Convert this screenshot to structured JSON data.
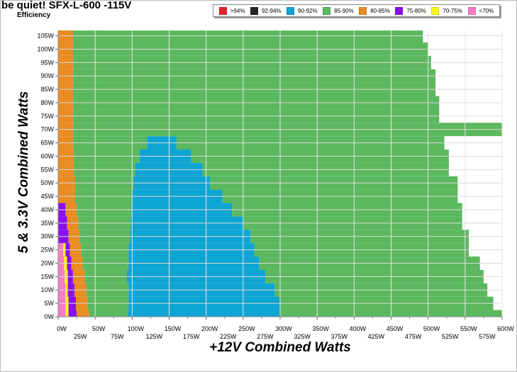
{
  "chart": {
    "title": "be quiet! SFX-L-600 -115V",
    "subtitle": "Efficiency",
    "xlabel": "+12V Combined Watts",
    "ylabel": "5 & 3.3V Combined Watts"
  },
  "legend": [
    {
      "label": ">94%",
      "color": "#e8202e"
    },
    {
      "label": "92-94%",
      "color": "#262626"
    },
    {
      "label": "90-92%",
      "color": "#0ea5d3"
    },
    {
      "label": "85-90%",
      "color": "#5cb85f"
    },
    {
      "label": "80-85%",
      "color": "#e88c23"
    },
    {
      "label": "75-80%",
      "color": "#8a0ef2"
    },
    {
      "label": "70-75%",
      "color": "#fbf514"
    },
    {
      "label": "<70%",
      "color": "#f57bc6"
    }
  ],
  "chart_data": {
    "type": "heatmap",
    "title": "be quiet! SFX-L-600 -115V",
    "subtitle": "Efficiency",
    "xlabel": "+12V Combined Watts",
    "ylabel": "5 & 3.3V Combined Watts",
    "xlim": [
      0,
      600
    ],
    "ylim": [
      0,
      107
    ],
    "x_ticks_upper": [
      "0W",
      "50W",
      "100W",
      "150W",
      "200W",
      "250W",
      "300W",
      "350W",
      "400W",
      "450W",
      "500W",
      "550W",
      "600W"
    ],
    "x_ticks_lower": [
      "25W",
      "75W",
      "125W",
      "175W",
      "225W",
      "275W",
      "325W",
      "375W",
      "425W",
      "475W",
      "525W",
      "575W"
    ],
    "y_ticks": [
      "0W",
      "5W",
      "10W",
      "15W",
      "20W",
      "25W",
      "30W",
      "35W",
      "40W",
      "45W",
      "50W",
      "55W",
      "60W",
      "65W",
      "70W",
      "75W",
      "80W",
      "85W",
      "90W",
      "95W",
      "100W",
      "105W"
    ],
    "grid": true,
    "legend_position": "top",
    "boundary_note": "Each row lists the +12V watt at which each efficiency band ends, moving left to right; the last value is the maximum load tested.",
    "rows": [
      {
        "y": 0,
        "edges": {
          "<70%": 10,
          "70-75%": 14,
          "75-80%": 25,
          "80-85%": 42,
          "85-90%": 94,
          "90-92%": 300,
          "85-90% (high)": 600
        }
      },
      {
        "y": 5,
        "edges": {
          "<70%": 10,
          "70-75%": 14,
          "75-80%": 24,
          "80-85%": 40,
          "85-90%": 95,
          "90-92%": 300,
          "85-90% (high)": 588
        }
      },
      {
        "y": 10,
        "edges": {
          "<70%": 10,
          "70-75%": 13,
          "75-80%": 22,
          "80-85%": 38,
          "85-90%": 95,
          "90-92%": 293,
          "85-90% (high)": 580
        }
      },
      {
        "y": 15,
        "edges": {
          "<70%": 9,
          "70-75%": 13,
          "75-80%": 20,
          "80-85%": 36,
          "85-90%": 93,
          "90-92%": 280,
          "85-90% (high)": 575
        }
      },
      {
        "y": 20,
        "edges": {
          "<70%": 8,
          "70-75%": 12,
          "75-80%": 18,
          "80-85%": 33,
          "85-90%": 95,
          "90-92%": 272,
          "85-90% (high)": 570
        }
      },
      {
        "y": 25,
        "edges": {
          "<70%": 7,
          "70-75%": 10,
          "75-80%": 16,
          "80-85%": 31,
          "85-90%": 95,
          "90-92%": 265,
          "85-90% (high)": 555
        }
      },
      {
        "y": 30,
        "edges": {
          "75-80%": 14,
          "80-85%": 29,
          "85-90%": 97,
          "90-92%": 260,
          "85-90% (high)": 555
        }
      },
      {
        "y": 35,
        "edges": {
          "75-80%": 12,
          "80-85%": 27,
          "85-90%": 98,
          "90-92%": 250,
          "85-90% (high)": 546
        }
      },
      {
        "y": 40,
        "edges": {
          "75-80%": 10,
          "80-85%": 25,
          "85-90%": 99,
          "90-92%": 235,
          "85-90% (high)": 546
        }
      },
      {
        "y": 45,
        "edges": {
          "80-85%": 23,
          "85-90%": 100,
          "90-92%": 222,
          "85-90% (high)": 540
        }
      },
      {
        "y": 50,
        "edges": {
          "80-85%": 23,
          "85-90%": 102,
          "90-92%": 205,
          "85-90% (high)": 540
        }
      },
      {
        "y": 55,
        "edges": {
          "80-85%": 21,
          "85-90%": 104,
          "90-92%": 195,
          "85-90% (high)": 528
        }
      },
      {
        "y": 60,
        "edges": {
          "80-85%": 21,
          "85-90%": 110,
          "90-92%": 180,
          "85-90% (high)": 528
        }
      },
      {
        "y": 65,
        "edges": {
          "80-85%": 20,
          "85-90%": 120,
          "90-92%": 160,
          "85-90% (high)": 522
        }
      },
      {
        "y": 70,
        "edges": {
          "80-85%": 20,
          "85-90%": 600
        }
      },
      {
        "y": 75,
        "edges": {
          "80-85%": 20,
          "85-90%": 515
        }
      },
      {
        "y": 80,
        "edges": {
          "80-85%": 20,
          "85-90%": 515
        }
      },
      {
        "y": 85,
        "edges": {
          "80-85%": 20,
          "85-90%": 510
        }
      },
      {
        "y": 90,
        "edges": {
          "80-85%": 20,
          "85-90%": 510
        }
      },
      {
        "y": 95,
        "edges": {
          "80-85%": 20,
          "85-90%": 504
        }
      },
      {
        "y": 100,
        "edges": {
          "80-85%": 20,
          "85-90%": 500
        }
      },
      {
        "y": 105,
        "edges": {
          "80-85%": 20,
          "85-90%": 493
        }
      }
    ]
  }
}
